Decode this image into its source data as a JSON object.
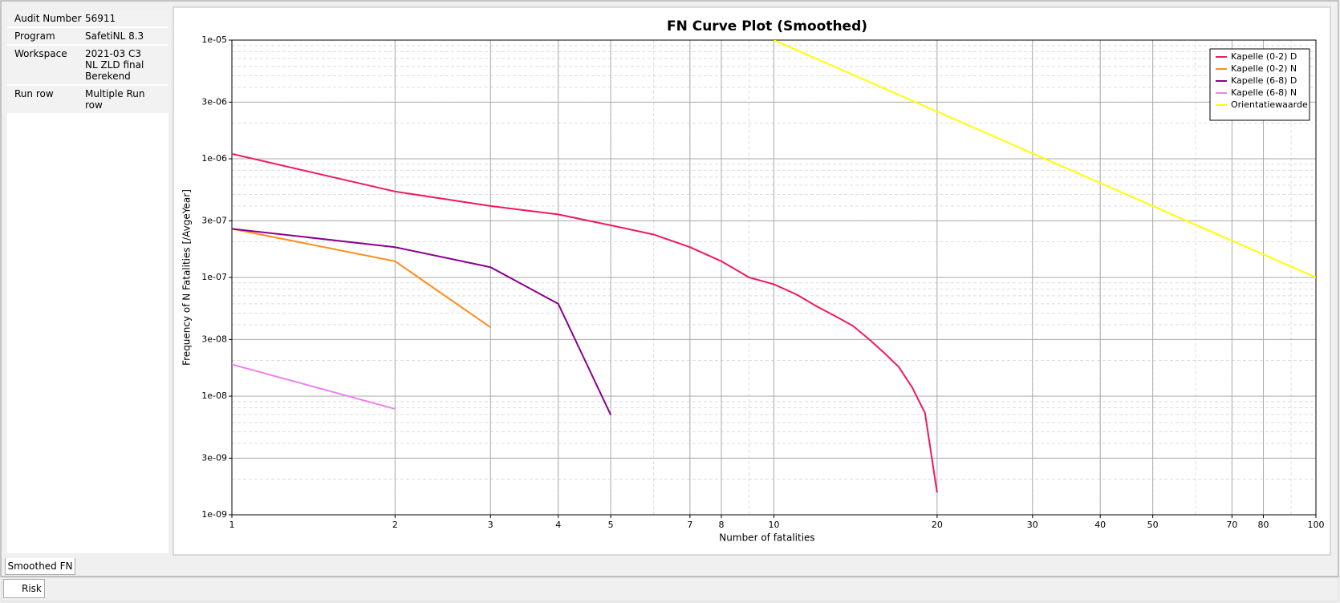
{
  "panel": {
    "rows": [
      [
        "Audit Number",
        "56911"
      ],
      [
        "Program",
        "SafetiNL 8.3"
      ],
      [
        "Workspace",
        "2021-03 C3 NL ZLD final Berekend"
      ],
      [
        "Run row",
        "Multiple Run row"
      ]
    ]
  },
  "tabs": [
    "Smoothed FN",
    "Risk"
  ],
  "chart_data": {
    "type": "line",
    "title": "FN Curve Plot (Smoothed)",
    "x_label": "Number of fatalities",
    "y_label": "Frequency of N Fatalities [/AvgeYear]",
    "x_log": true,
    "y_log": true,
    "grid": true,
    "legend": "upper right",
    "xlim": [
      1,
      100
    ],
    "xticks": [
      1,
      2,
      3,
      4,
      5,
      7,
      8,
      10,
      20,
      30,
      40,
      50,
      70,
      80,
      100
    ],
    "ylim": [
      1e-09,
      1e-05
    ],
    "yticks": [
      {
        "value": 1e-09,
        "label": "1e-09"
      },
      {
        "value": 3e-09,
        "label": "3e-09"
      },
      {
        "value": 1e-08,
        "label": "1e-08"
      },
      {
        "value": 3e-08,
        "label": "3e-08"
      },
      {
        "value": 1e-07,
        "label": "1e-07"
      },
      {
        "value": 3e-07,
        "label": "3e-07"
      },
      {
        "value": 1e-06,
        "label": "1e-06"
      },
      {
        "value": 3e-06,
        "label": "3e-06"
      },
      {
        "value": 1e-05,
        "label": "1e-05"
      }
    ],
    "series": [
      {
        "name": "Kapelle (0-2) D",
        "color": "#f0185c",
        "x": [
          1,
          2,
          3,
          4,
          5,
          6,
          7,
          8,
          9,
          10,
          11,
          12,
          13,
          14,
          15,
          16,
          17,
          18,
          19,
          20
        ],
        "values": [
          1.1e-06,
          5.3e-07,
          4e-07,
          3.4e-07,
          2.75e-07,
          2.3e-07,
          1.8e-07,
          1.37e-07,
          1e-07,
          8.75e-08,
          7.2e-08,
          5.7e-08,
          4.7e-08,
          3.9e-08,
          3e-08,
          2.3e-08,
          1.76e-08,
          1.18e-08,
          7.2e-09,
          1.54e-09
        ]
      },
      {
        "name": "Kapelle (0-2) N",
        "color": "#ff8c1a",
        "x": [
          1,
          2,
          3
        ],
        "values": [
          2.57e-07,
          1.37e-07,
          3.8e-08
        ]
      },
      {
        "name": "Kapelle (6-8) D",
        "color": "#8b008b",
        "x": [
          1,
          2,
          3,
          4,
          5
        ],
        "values": [
          2.57e-07,
          1.8e-07,
          1.22e-07,
          6e-08,
          6.95e-09
        ]
      },
      {
        "name": "Kapelle (6-8) N",
        "color": "#ee82ee",
        "x": [
          1,
          2
        ],
        "values": [
          1.85e-08,
          7.8e-09
        ]
      },
      {
        "name": "Orientatiewaarde",
        "color": "#ffff00",
        "x": [
          10,
          100
        ],
        "values": [
          1e-05,
          1e-07
        ]
      }
    ]
  }
}
